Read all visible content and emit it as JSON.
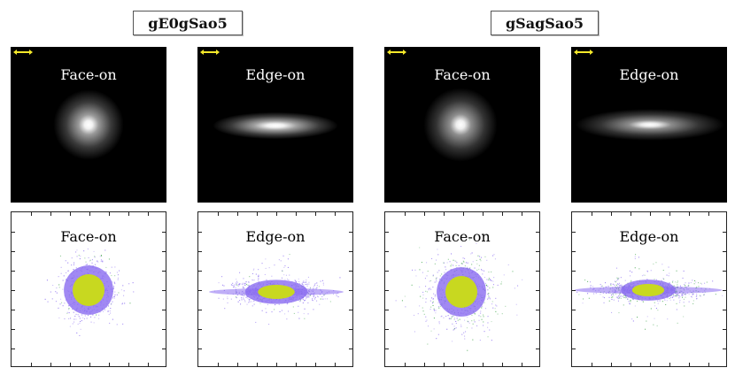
{
  "titles": {
    "left": "gE0gSao5",
    "right": "gSagSao5"
  },
  "panels": [
    {
      "label": "Face-on"
    },
    {
      "label": "Edge-on"
    },
    {
      "label": "Face-on"
    },
    {
      "label": "Edge-on"
    },
    {
      "label": "Face-on"
    },
    {
      "label": "Edge-on"
    },
    {
      "label": "Face-on"
    },
    {
      "label": "Edge-on"
    }
  ],
  "colors": {
    "scale_bar": "#f5e92a",
    "core_yellow": "#c8d820",
    "halo_purple": "#8a6cf0",
    "halo_green": "#4caa55"
  }
}
